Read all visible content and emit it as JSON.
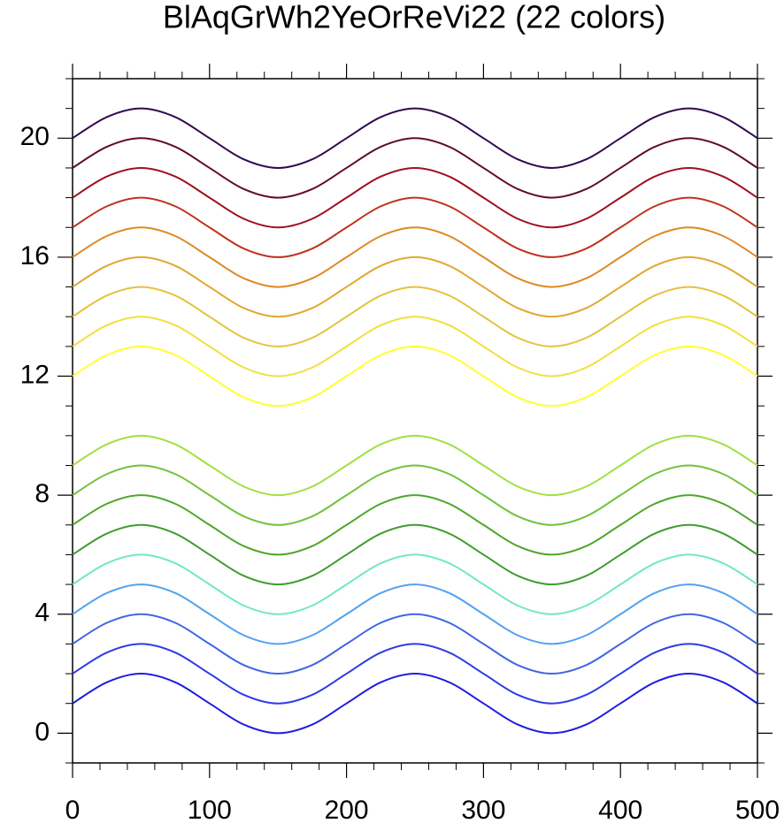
{
  "chart_data": {
    "type": "line",
    "title": "BlAqGrWh2YeOrReVi22 (22 colors)",
    "x": [
      0,
      25,
      50,
      75,
      100,
      125,
      150,
      175,
      200,
      225,
      250,
      275,
      300,
      325,
      350,
      375,
      400,
      425,
      450,
      475,
      500
    ],
    "series": [
      {
        "color": "#1e1ee0",
        "values": [
          1,
          1.71,
          2,
          1.71,
          1,
          0.29,
          0,
          0.29,
          1,
          1.71,
          2,
          1.71,
          1,
          0.29,
          0,
          0.29,
          1,
          1.71,
          2,
          1.71,
          1
        ]
      },
      {
        "color": "#2f3ae6",
        "values": [
          2,
          2.71,
          3,
          2.71,
          2,
          1.29,
          1,
          1.29,
          2,
          2.71,
          3,
          2.71,
          2,
          1.29,
          1,
          1.29,
          2,
          2.71,
          3,
          2.71,
          2
        ]
      },
      {
        "color": "#4066e4",
        "values": [
          3,
          3.71,
          4,
          3.71,
          3,
          2.29,
          2,
          2.29,
          3,
          3.71,
          4,
          3.71,
          3,
          2.29,
          2,
          2.29,
          3,
          3.71,
          4,
          3.71,
          3
        ]
      },
      {
        "color": "#52a2f0",
        "values": [
          4,
          4.71,
          5,
          4.71,
          4,
          3.29,
          3,
          3.29,
          4,
          4.71,
          5,
          4.71,
          4,
          3.29,
          3,
          3.29,
          4,
          4.71,
          5,
          4.71,
          4
        ]
      },
      {
        "color": "#72e8c0",
        "values": [
          5,
          5.71,
          6,
          5.71,
          5,
          4.29,
          4,
          4.29,
          5,
          5.71,
          6,
          5.71,
          5,
          4.29,
          4,
          4.29,
          5,
          5.71,
          6,
          5.71,
          5
        ]
      },
      {
        "color": "#3f9c2e",
        "values": [
          6,
          6.71,
          7,
          6.71,
          6,
          5.29,
          5,
          5.29,
          6,
          6.71,
          7,
          6.71,
          6,
          5.29,
          5,
          5.29,
          6,
          6.71,
          7,
          6.71,
          6
        ]
      },
      {
        "color": "#4ea62a",
        "values": [
          7,
          7.71,
          8,
          7.71,
          7,
          6.29,
          6,
          6.29,
          7,
          7.71,
          8,
          7.71,
          7,
          6.29,
          6,
          6.29,
          7,
          7.71,
          8,
          7.71,
          7
        ]
      },
      {
        "color": "#72c23e",
        "values": [
          8,
          8.71,
          9,
          8.71,
          8,
          7.29,
          7,
          7.29,
          8,
          8.71,
          9,
          8.71,
          8,
          7.29,
          7,
          7.29,
          8,
          8.71,
          9,
          8.71,
          8
        ]
      },
      {
        "color": "#a2e040",
        "values": [
          9,
          9.71,
          10,
          9.71,
          9,
          8.29,
          8,
          8.29,
          9,
          9.71,
          10,
          9.71,
          9,
          8.29,
          8,
          8.29,
          9,
          9.71,
          10,
          9.71,
          9
        ]
      },
      {
        "color": "#ffff30",
        "values": [
          12,
          12.71,
          13,
          12.71,
          12,
          11.29,
          11,
          11.29,
          12,
          12.71,
          13,
          12.71,
          12,
          11.29,
          11,
          11.29,
          12,
          12.71,
          13,
          12.71,
          12
        ]
      },
      {
        "color": "#f0e040",
        "values": [
          13,
          13.71,
          14,
          13.71,
          13,
          12.29,
          12,
          12.29,
          13,
          13.71,
          14,
          13.71,
          13,
          12.29,
          12,
          12.29,
          13,
          13.71,
          14,
          13.71,
          13
        ]
      },
      {
        "color": "#e6c23e",
        "values": [
          14,
          14.71,
          15,
          14.71,
          14,
          13.29,
          13,
          13.29,
          14,
          14.71,
          15,
          14.71,
          14,
          13.29,
          13,
          13.29,
          14,
          14.71,
          15,
          14.71,
          14
        ]
      },
      {
        "color": "#e0a830",
        "values": [
          15,
          15.71,
          16,
          15.71,
          15,
          14.29,
          14,
          14.29,
          15,
          15.71,
          16,
          15.71,
          15,
          14.29,
          14,
          14.29,
          15,
          15.71,
          16,
          15.71,
          15
        ]
      },
      {
        "color": "#dc8a22",
        "values": [
          16,
          16.71,
          17,
          16.71,
          16,
          15.29,
          15,
          15.29,
          16,
          16.71,
          17,
          16.71,
          16,
          15.29,
          15,
          15.29,
          16,
          16.71,
          17,
          16.71,
          16
        ]
      },
      {
        "color": "#c0321e",
        "values": [
          17,
          17.71,
          18,
          17.71,
          17,
          16.29,
          16,
          16.29,
          17,
          17.71,
          18,
          17.71,
          17,
          16.29,
          16,
          16.29,
          17,
          17.71,
          18,
          17.71,
          17
        ]
      },
      {
        "color": "#a01020",
        "values": [
          18,
          18.71,
          19,
          18.71,
          18,
          17.29,
          17,
          17.29,
          18,
          18.71,
          19,
          18.71,
          18,
          17.29,
          17,
          17.29,
          18,
          18.71,
          19,
          18.71,
          18
        ]
      },
      {
        "color": "#620a30",
        "values": [
          19,
          19.71,
          20,
          19.71,
          19,
          18.29,
          18,
          18.29,
          19,
          19.71,
          20,
          19.71,
          19,
          18.29,
          18,
          18.29,
          19,
          19.71,
          20,
          19.71,
          19
        ]
      },
      {
        "color": "#320850",
        "values": [
          20,
          20.71,
          21,
          20.71,
          20,
          19.29,
          19,
          19.29,
          20,
          20.71,
          21,
          20.71,
          20,
          19.29,
          19,
          19.29,
          20,
          20.71,
          21,
          20.71,
          20
        ]
      }
    ],
    "xlim": [
      0,
      500
    ],
    "xticks": [
      0,
      100,
      200,
      300,
      400,
      500
    ],
    "xminorticks": [
      20,
      40,
      60,
      80,
      120,
      140,
      160,
      180,
      220,
      240,
      260,
      280,
      320,
      340,
      360,
      380,
      420,
      440,
      460,
      480
    ],
    "ylim": [
      -1,
      22
    ],
    "yticks": [
      0,
      4,
      8,
      12,
      16,
      20
    ],
    "yminorticks": [
      -1,
      1,
      2,
      3,
      5,
      6,
      7,
      9,
      10,
      11,
      13,
      14,
      15,
      17,
      18,
      19,
      21,
      22
    ]
  }
}
